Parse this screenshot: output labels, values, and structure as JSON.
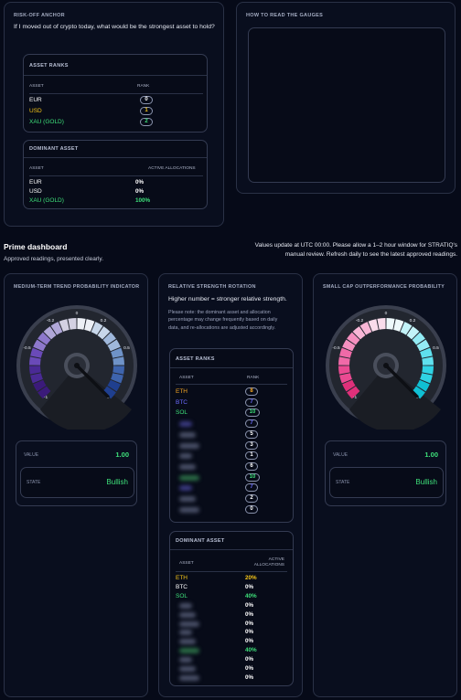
{
  "risk_off": {
    "title": "RISK-OFF ANCHOR",
    "question": "If I moved out of crypto today, what would be the strongest asset to hold?",
    "ranks": {
      "title": "ASSET RANKS",
      "col_asset": "ASSET",
      "col_rank": "RANK",
      "rows": [
        {
          "asset": "EUR",
          "rank": "0",
          "color": "#ffffff"
        },
        {
          "asset": "USD",
          "rank": "1",
          "color": "#f5c518"
        },
        {
          "asset": "XAU (GOLD)",
          "rank": "2",
          "color": "#3ee07a"
        }
      ]
    },
    "dominant": {
      "title": "DOMINANT ASSET",
      "col_asset": "ASSET",
      "col_alloc": "ACTIVE ALLOCATIONS",
      "rows": [
        {
          "asset": "EUR",
          "value": "0%",
          "color": "#ffffff"
        },
        {
          "asset": "USD",
          "value": "0%",
          "color": "#ffffff"
        },
        {
          "asset": "XAU (GOLD)",
          "value": "100%",
          "color": "#3ee07a"
        }
      ]
    }
  },
  "how_to": {
    "title": "HOW TO READ THE GAUGES"
  },
  "prime": {
    "title": "Prime dashboard",
    "subtitle": "Approved readings, presented clearly.",
    "update_note": "Values update at UTC 00:00. Please allow a 1–2 hour window for STRATIQ's manual review. Refresh daily to see the latest approved readings."
  },
  "trend": {
    "title": "MEDIUM-TERM TREND PROBABILITY INDICATOR",
    "gauge_value": 1.0,
    "labels": [
      "-1",
      "-0.5",
      "-0.2",
      "0",
      "0.2",
      "0.5",
      "1"
    ],
    "value_label": "VALUE",
    "value": "1.00",
    "state_label": "STATE",
    "state": "Bullish",
    "colors": [
      "#3b1a7a",
      "#4a2a95",
      "#6a4ab8",
      "#8d78cc",
      "#b0a7d8",
      "#d3d1e2",
      "#eceff5",
      "#c8d7ea",
      "#9fb8db",
      "#6f93c8",
      "#3e64ad",
      "#1f3f8f"
    ]
  },
  "rsr": {
    "title": "RELATIVE STRENGTH ROTATION",
    "heading": "Higher number = stronger relative strength.",
    "note": "Please note: the dominant asset and allocation percentage may change frequently based on daily data, and re-allocations are adjusted accordingly.",
    "ranks": {
      "title": "ASSET RANKS",
      "col_asset": "ASSET",
      "col_rank": "RANK",
      "rows": [
        {
          "asset": "ETH",
          "rank": "8",
          "color": "#f5a623",
          "blur": false
        },
        {
          "asset": "BTC",
          "rank": "7",
          "color": "#6c6cff",
          "blur": false
        },
        {
          "asset": "SOL",
          "rank": "10",
          "color": "#3ee07a",
          "blur": false
        },
        {
          "asset": "",
          "rank": "7",
          "color": "#6c6cff",
          "blur": true
        },
        {
          "asset": "",
          "rank": "5",
          "color": "#ffffff",
          "blur": true
        },
        {
          "asset": "",
          "rank": "3",
          "color": "#ffffff",
          "blur": true
        },
        {
          "asset": "",
          "rank": "1",
          "color": "#ffffff",
          "blur": true
        },
        {
          "asset": "",
          "rank": "6",
          "color": "#ffffff",
          "blur": true
        },
        {
          "asset": "",
          "rank": "10",
          "color": "#3ee07a",
          "blur": true
        },
        {
          "asset": "",
          "rank": "7",
          "color": "#6c6cff",
          "blur": true
        },
        {
          "asset": "",
          "rank": "2",
          "color": "#ffffff",
          "blur": true
        },
        {
          "asset": "",
          "rank": "0",
          "color": "#ffffff",
          "blur": true
        }
      ]
    },
    "dominant": {
      "title": "DOMINANT ASSET",
      "col_asset": "ASSET",
      "col_alloc_1": "ACTIVE",
      "col_alloc_2": "ALLOCATIONS",
      "rows": [
        {
          "asset": "ETH",
          "value": "20%",
          "color": "#f5c518",
          "blur": false
        },
        {
          "asset": "BTC",
          "value": "0%",
          "color": "#ffffff",
          "blur": false
        },
        {
          "asset": "SOL",
          "value": "40%",
          "color": "#3ee07a",
          "blur": false
        },
        {
          "asset": "",
          "value": "0%",
          "color": "#ffffff",
          "blur": true
        },
        {
          "asset": "",
          "value": "0%",
          "color": "#ffffff",
          "blur": true
        },
        {
          "asset": "",
          "value": "0%",
          "color": "#ffffff",
          "blur": true
        },
        {
          "asset": "",
          "value": "0%",
          "color": "#ffffff",
          "blur": true
        },
        {
          "asset": "",
          "value": "0%",
          "color": "#ffffff",
          "blur": true
        },
        {
          "asset": "",
          "value": "40%",
          "color": "#3ee07a",
          "blur": true
        },
        {
          "asset": "",
          "value": "0%",
          "color": "#ffffff",
          "blur": true
        },
        {
          "asset": "",
          "value": "0%",
          "color": "#ffffff",
          "blur": true
        },
        {
          "asset": "",
          "value": "0%",
          "color": "#ffffff",
          "blur": true
        }
      ]
    }
  },
  "smallcap": {
    "title": "SMALL CAP OUTPERFORMANCE PROBABILITY",
    "gauge_value": 1.0,
    "labels": [
      "-1",
      "-0.5",
      "-0.2",
      "0",
      "0.2",
      "0.5",
      "1"
    ],
    "value_label": "VALUE",
    "value": "1.00",
    "state_label": "STATE",
    "state": "Bullish",
    "colors": [
      "#e0307a",
      "#ea4a92",
      "#f06aa8",
      "#f590c0",
      "#f8b6d6",
      "#f9dceb",
      "#eef9fb",
      "#c3f3f8",
      "#93ebf4",
      "#5fe0ee",
      "#2fd2e4",
      "#10c0d4"
    ]
  }
}
